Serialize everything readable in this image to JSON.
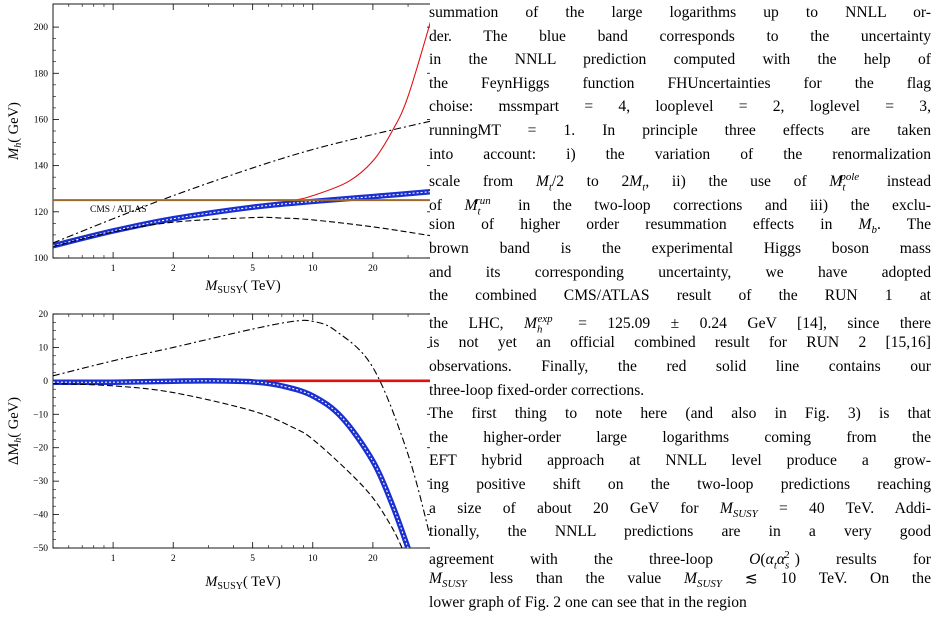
{
  "figure": {
    "top_panel": {
      "ylabel": "M_h (GeV)",
      "xlabel": "M_SUSY (TeV)",
      "annotation": "CMS / ATLAS",
      "yticks": [
        100,
        120,
        140,
        160,
        180,
        200
      ],
      "xticks": [
        1,
        2,
        5,
        10,
        20
      ],
      "xlim": [
        0.5,
        40
      ],
      "ylim": [
        100,
        210
      ],
      "x_scale": "log"
    },
    "bottom_panel": {
      "ylabel": "ΔM_h (GeV)",
      "xlabel": "M_SUSY (TeV)",
      "yticks": [
        -50,
        -40,
        -30,
        -20,
        -10,
        0,
        10,
        20
      ],
      "xticks": [
        1,
        2,
        5,
        10,
        20
      ],
      "xlim": [
        0.5,
        40
      ],
      "ylim": [
        -50,
        20
      ],
      "x_scale": "log"
    },
    "colors": {
      "red": "#e01010",
      "blue": "#1a2fd0",
      "brown": "#9a6a2e",
      "black": "#000000"
    }
  },
  "chart_data": [
    {
      "type": "line",
      "x_scale": "log",
      "xlim": [
        0.5,
        40
      ],
      "ylim": [
        100,
        210
      ],
      "xlabel": "M_SUSY (TeV)",
      "ylabel": "M_h (GeV)",
      "series": [
        {
          "color": "#e01010",
          "style": "solid",
          "x": [
            0.5,
            1,
            2,
            5,
            8,
            10,
            15,
            20,
            25,
            30,
            40
          ],
          "y": [
            105,
            111.5,
            117,
            122.5,
            125,
            127,
            133,
            142,
            155,
            170,
            206
          ]
        },
        {
          "color": "#1a2fd0",
          "style": "band",
          "x": [
            0.5,
            1,
            2,
            5,
            10,
            20,
            40
          ],
          "y": [
            105.3,
            111.7,
            117,
            122,
            124.5,
            126.6,
            128.8
          ]
        },
        {
          "color": "#000000",
          "style": "dashdot",
          "x": [
            0.5,
            1,
            2,
            5,
            10,
            20,
            40
          ],
          "y": [
            106.5,
            117,
            127,
            139,
            147,
            153.5,
            159.5
          ]
        },
        {
          "color": "#000000",
          "style": "dashed",
          "x": [
            0.5,
            1,
            2,
            5,
            7,
            10,
            20,
            40
          ],
          "y": [
            105,
            111.3,
            115.5,
            117.5,
            117.3,
            116.5,
            113.5,
            109.5
          ]
        },
        {
          "color": "#9a6a2e",
          "style": "hline",
          "x": [
            0.5,
            40
          ],
          "y": [
            125.09,
            125.09
          ]
        }
      ]
    },
    {
      "type": "line",
      "x_scale": "log",
      "xlim": [
        0.5,
        40
      ],
      "ylim": [
        -50,
        20
      ],
      "xlabel": "M_SUSY (TeV)",
      "ylabel": "ΔM_h (GeV)",
      "series": [
        {
          "color": "#e01010",
          "style": "hline",
          "x": [
            0.5,
            40
          ],
          "y": [
            0,
            0
          ]
        },
        {
          "color": "#1a2fd0",
          "style": "band",
          "x": [
            0.5,
            1,
            2,
            3,
            5,
            7,
            10,
            14,
            20,
            25,
            30
          ],
          "y": [
            -0.4,
            -0.4,
            -0.1,
            0,
            -0.3,
            -1.5,
            -4.5,
            -11,
            -24,
            -37,
            -50
          ]
        },
        {
          "color": "#000000",
          "style": "dashdot",
          "x": [
            0.5,
            1,
            2,
            5,
            8,
            10,
            13,
            20,
            30,
            40
          ],
          "y": [
            1.5,
            6,
            10,
            15.5,
            17.8,
            17.8,
            15,
            4,
            -22,
            -50
          ]
        },
        {
          "color": "#000000",
          "style": "dashed",
          "x": [
            0.5,
            1,
            2,
            5,
            8,
            10,
            15,
            20,
            25,
            28
          ],
          "y": [
            -0.8,
            -1.5,
            -3.5,
            -9,
            -14,
            -17.5,
            -27,
            -35,
            -44,
            -50
          ]
        }
      ]
    }
  ],
  "text": {
    "lines": [
      "summation of the large logarithms up to NNLL or-",
      "der. The blue band corresponds to the uncertainty",
      "in the NNLL prediction computed with the help of",
      "the FeynHiggs function FHUncertainties for the flag",
      "choise: mssmpart = 4, looplevel = 2, loglevel = 3,",
      "runningMT = 1. In principle three effects are taken",
      "into account: i) the variation of the renormalization",
      "scale from M_t/2 to 2M_t, ii) the use of M_t^pole instead",
      "of M_t^run in the two-loop corrections and iii) the exclu-",
      "sion of higher order resummation effects in M_b. The",
      "brown band is the experimental Higgs boson mass",
      "and its corresponding uncertainty, we have adopted",
      "the combined CMS/ATLAS result of the RUN 1 at",
      "the LHC, M_h^exp = 125.09 ± 0.24 GeV [14], since there",
      "is not yet an official combined result for RUN 2 [15,16]",
      "observations. Finally, the red solid line contains our",
      "three-loop fixed-order corrections.",
      "The first thing to note here (and also in Fig. 3) is that",
      "the higher-order large logarithms coming from the",
      "EFT hybrid approach at NNLL level produce a grow-",
      "ing positive shift on the two-loop predictions reaching",
      "a size of about 20 GeV for M_SUSY = 40 TeV. Addi-",
      "tionally, the NNLL predictions are in a very good",
      "agreement with the three-loop O(α_t α_s^2) results for",
      "M_SUSY less than the value M_SUSY ≲ 10 TeV. On the",
      "lower graph of Fig. 2 one can see that in the region"
    ]
  }
}
